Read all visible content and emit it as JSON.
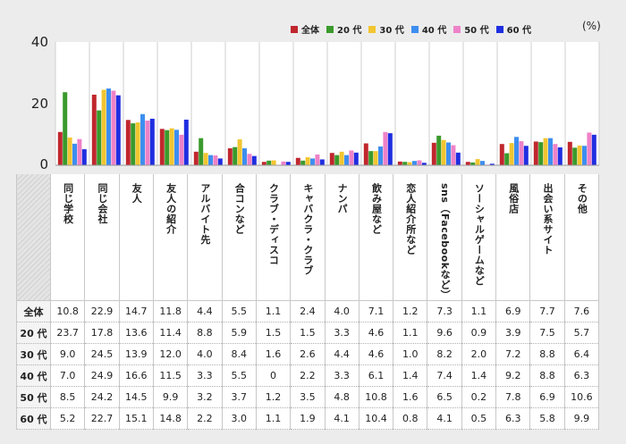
{
  "chart_data": {
    "type": "bar",
    "unit": "(%)",
    "y_ticks": [
      "0",
      "20",
      "40"
    ],
    "ylim": [
      0,
      40
    ],
    "grid": false,
    "legend_position": "top-right",
    "categories": [
      "同じ学校",
      "同じ会社",
      "友人",
      "友人の紹介",
      "アルバイト先",
      "合コンなど",
      "クラブ・ディスコ",
      "キャバクラ・クラブ",
      "ナンパ",
      "飲み屋など",
      "恋人紹介所など",
      "sns（Facebookなど）",
      "ソーシャルゲームなど",
      "風俗店",
      "出会い系サイト",
      "その他"
    ],
    "series": [
      {
        "name": "全体",
        "color": "#c0272d",
        "values": [
          10.8,
          22.9,
          14.7,
          11.8,
          4.4,
          5.5,
          1.1,
          2.4,
          4.0,
          7.1,
          1.2,
          7.3,
          1.1,
          6.9,
          7.7,
          7.6
        ],
        "labels": [
          "10.8",
          "22.9",
          "14.7",
          "11.8",
          "4.4",
          "5.5",
          "1.1",
          "2.4",
          "4.0",
          "7.1",
          "1.2",
          "7.3",
          "1.1",
          "6.9",
          "7.7",
          "7.6"
        ]
      },
      {
        "name": "20 代",
        "color": "#3a9a2c",
        "values": [
          23.7,
          17.8,
          13.6,
          11.4,
          8.8,
          5.9,
          1.5,
          1.5,
          3.3,
          4.6,
          1.1,
          9.6,
          0.9,
          3.9,
          7.5,
          5.7
        ],
        "labels": [
          "23.7",
          "17.8",
          "13.6",
          "11.4",
          "8.8",
          "5.9",
          "1.5",
          "1.5",
          "3.3",
          "4.6",
          "1.1",
          "9.6",
          "0.9",
          "3.9",
          "7.5",
          "5.7"
        ]
      },
      {
        "name": "30 代",
        "color": "#f2c531",
        "values": [
          9.0,
          24.5,
          13.9,
          12.0,
          4.0,
          8.4,
          1.6,
          2.6,
          4.4,
          4.6,
          1.0,
          8.2,
          2.0,
          7.2,
          8.8,
          6.4
        ],
        "labels": [
          "9.0",
          "24.5",
          "13.9",
          "12.0",
          "4.0",
          "8.4",
          "1.6",
          "2.6",
          "4.4",
          "4.6",
          "1.0",
          "8.2",
          "2.0",
          "7.2",
          "8.8",
          "6.4"
        ]
      },
      {
        "name": "40 代",
        "color": "#3d8ef0",
        "values": [
          7.0,
          24.9,
          16.6,
          11.5,
          3.3,
          5.5,
          0,
          2.2,
          3.3,
          6.1,
          1.4,
          7.4,
          1.4,
          9.2,
          8.8,
          6.3
        ],
        "labels": [
          "7.0",
          "24.9",
          "16.6",
          "11.5",
          "3.3",
          "5.5",
          "0",
          "2.2",
          "3.3",
          "6.1",
          "1.4",
          "7.4",
          "1.4",
          "9.2",
          "8.8",
          "6.3"
        ]
      },
      {
        "name": "50 代",
        "color": "#ee82c8",
        "values": [
          8.5,
          24.2,
          14.5,
          9.9,
          3.2,
          3.7,
          1.2,
          3.5,
          4.8,
          10.8,
          1.6,
          6.5,
          0.2,
          7.8,
          6.9,
          10.6
        ],
        "labels": [
          "8.5",
          "24.2",
          "14.5",
          "9.9",
          "3.2",
          "3.7",
          "1.2",
          "3.5",
          "4.8",
          "10.8",
          "1.6",
          "6.5",
          "0.2",
          "7.8",
          "6.9",
          "10.6"
        ]
      },
      {
        "name": "60 代",
        "color": "#1f2ee0",
        "values": [
          5.2,
          22.7,
          15.1,
          14.8,
          2.2,
          3.0,
          1.1,
          1.9,
          4.1,
          10.4,
          0.8,
          4.1,
          0.5,
          6.3,
          5.8,
          9.9
        ],
        "labels": [
          "5.2",
          "22.7",
          "15.1",
          "14.8",
          "2.2",
          "3.0",
          "1.1",
          "1.9",
          "4.1",
          "10.4",
          "0.8",
          "4.1",
          "0.5",
          "6.3",
          "5.8",
          "9.9"
        ]
      }
    ]
  }
}
